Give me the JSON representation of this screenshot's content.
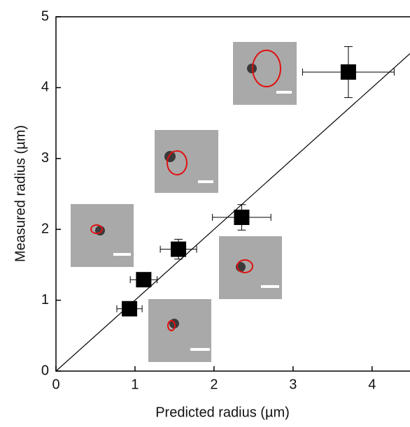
{
  "chart_data": {
    "type": "scatter",
    "x_label": "Predicted radius (µm)",
    "y_label": "Measured radius (µm)",
    "x": [
      0.93,
      1.11,
      1.55,
      2.35,
      3.7
    ],
    "values": [
      0.88,
      1.29,
      1.72,
      2.17,
      4.22
    ],
    "xerr": [
      0.16,
      0.17,
      0.23,
      0.37,
      0.58
    ],
    "yerr": [
      0.05,
      0.07,
      0.14,
      0.18,
      0.36
    ],
    "color": "#000000",
    "xlim": [
      0,
      4.48
    ],
    "ylim": [
      0,
      5
    ],
    "xticks": [
      0,
      1,
      2,
      3,
      4
    ],
    "yticks": [
      0,
      1,
      2,
      3,
      4,
      5
    ]
  }
}
